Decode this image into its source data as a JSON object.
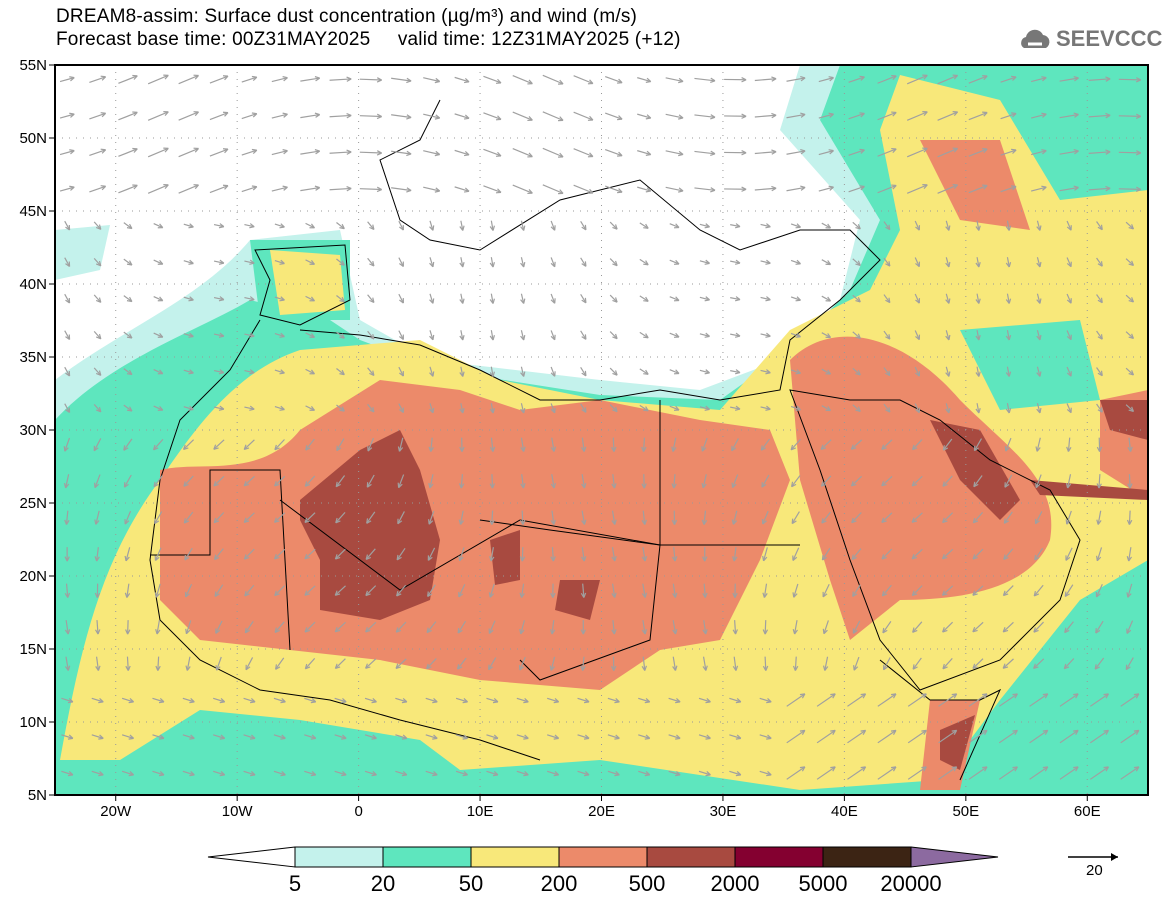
{
  "title": {
    "line1": "DREAM8-assim: Surface dust concentration (µg/m³) and wind (m/s)",
    "line2": "Forecast base time: 00Z31MAY2025     valid time: 12Z31MAY2025 (+12)"
  },
  "logo": {
    "text": "SEEVCCC",
    "icon": "cloud-icon"
  },
  "map": {
    "lon_range": [
      -25,
      65
    ],
    "lat_range": [
      5,
      55
    ],
    "lat_labels": [
      "55N",
      "50N",
      "45N",
      "40N",
      "35N",
      "30N",
      "25N",
      "20N",
      "15N",
      "10N",
      "5N"
    ],
    "lon_labels": [
      "20W",
      "10W",
      "0",
      "10E",
      "20E",
      "30E",
      "40E",
      "50E",
      "60E"
    ]
  },
  "colorbar": {
    "labels": [
      "5",
      "20",
      "50",
      "200",
      "500",
      "2000",
      "5000",
      "20000"
    ],
    "colors": [
      "#ffffff",
      "#c4f2ec",
      "#5ee6be",
      "#f8e87a",
      "#ec8a6a",
      "#a84a40",
      "#840030",
      "#3c2414",
      "#8c6aa0"
    ]
  },
  "wind_reference": {
    "label": "20"
  }
}
